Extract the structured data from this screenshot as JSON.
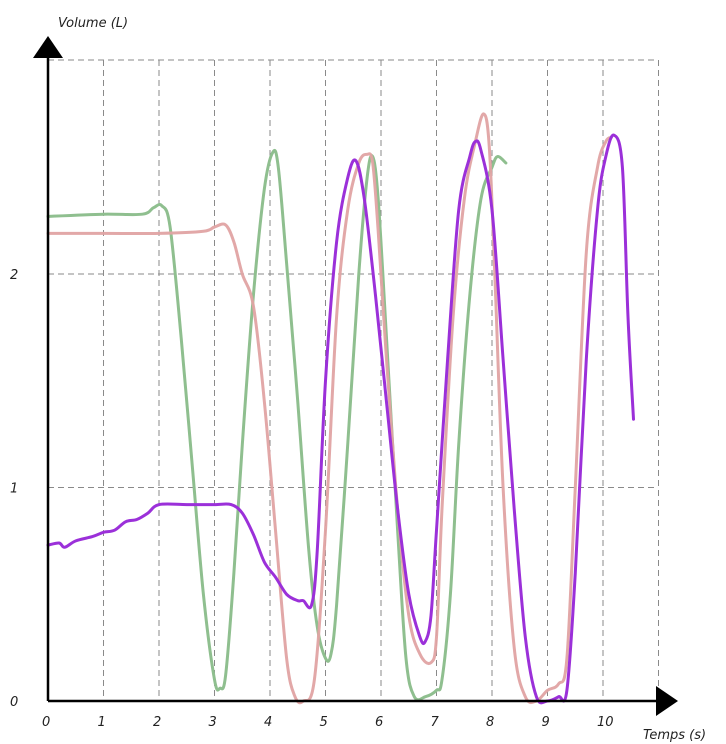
{
  "chart_data": {
    "type": "line",
    "title": "",
    "xlabel": "Temps (s)",
    "ylabel": "Volume (L)",
    "xlim": [
      0,
      11
    ],
    "ylim": [
      0,
      3
    ],
    "xticks": [
      "0",
      "1",
      "2",
      "3",
      "4",
      "5",
      "6",
      "7",
      "8",
      "9",
      "10"
    ],
    "yticks": [
      "0",
      "1",
      "2"
    ],
    "grid": true,
    "series": [
      {
        "color": "#8fbf8f",
        "x": [
          0,
          1.0,
          1.7,
          1.9,
          2.05,
          2.2,
          2.4,
          2.6,
          2.8,
          3.0,
          3.1,
          3.2,
          3.35,
          3.5,
          3.7,
          3.9,
          4.05,
          4.15,
          4.3,
          4.5,
          4.7,
          4.85,
          5.0,
          5.1,
          5.2,
          5.4,
          5.6,
          5.75,
          5.85,
          5.95,
          6.1,
          6.3,
          6.45,
          6.6,
          6.8,
          7.0,
          7.1,
          7.25,
          7.4,
          7.6,
          7.8,
          8.0,
          8.1,
          8.25
        ],
        "y": [
          2.27,
          2.28,
          2.28,
          2.31,
          2.32,
          2.22,
          1.7,
          1.1,
          0.5,
          0.1,
          0.06,
          0.12,
          0.6,
          1.2,
          1.9,
          2.4,
          2.57,
          2.5,
          2.05,
          1.4,
          0.7,
          0.35,
          0.2,
          0.22,
          0.45,
          1.2,
          2.0,
          2.45,
          2.55,
          2.35,
          1.7,
          0.8,
          0.2,
          0.02,
          0.02,
          0.05,
          0.1,
          0.5,
          1.2,
          1.9,
          2.35,
          2.5,
          2.55,
          2.52
        ]
      },
      {
        "color": "#e0a3a3",
        "x": [
          0,
          1.0,
          2.0,
          2.8,
          3.0,
          3.2,
          3.35,
          3.5,
          3.7,
          3.9,
          4.1,
          4.3,
          4.45,
          4.6,
          4.8,
          5.0,
          5.2,
          5.4,
          5.6,
          5.75,
          5.85,
          5.95,
          6.1,
          6.3,
          6.5,
          6.7,
          6.9,
          7.0,
          7.1,
          7.3,
          7.5,
          7.7,
          7.85,
          7.95,
          8.05,
          8.2,
          8.4,
          8.6,
          8.8,
          9.0,
          9.2,
          9.35,
          9.5,
          9.7,
          9.9,
          10.05,
          10.15
        ],
        "y": [
          2.19,
          2.19,
          2.19,
          2.2,
          2.22,
          2.23,
          2.15,
          2.0,
          1.85,
          1.4,
          0.8,
          0.2,
          0.02,
          0.0,
          0.1,
          0.8,
          1.8,
          2.3,
          2.52,
          2.56,
          2.52,
          2.2,
          1.6,
          0.9,
          0.4,
          0.22,
          0.18,
          0.3,
          0.9,
          1.8,
          2.35,
          2.62,
          2.75,
          2.6,
          2.0,
          1.0,
          0.25,
          0.02,
          0.0,
          0.05,
          0.08,
          0.2,
          1.0,
          2.1,
          2.5,
          2.62,
          2.64
        ]
      },
      {
        "color": "#9b30d9",
        "x": [
          0,
          0.2,
          0.3,
          0.5,
          0.8,
          1.0,
          1.2,
          1.4,
          1.6,
          1.8,
          2.0,
          2.5,
          3.0,
          3.3,
          3.5,
          3.7,
          3.9,
          4.1,
          4.3,
          4.5,
          4.6,
          4.75,
          4.85,
          5.0,
          5.2,
          5.4,
          5.55,
          5.7,
          5.9,
          6.1,
          6.3,
          6.5,
          6.7,
          6.8,
          6.9,
          7.0,
          7.2,
          7.4,
          7.6,
          7.7,
          7.8,
          8.0,
          8.2,
          8.4,
          8.6,
          8.8,
          9.0,
          9.2,
          9.35,
          9.5,
          9.7,
          9.9,
          10.05,
          10.2,
          10.35,
          10.45,
          10.55
        ],
        "y": [
          0.73,
          0.74,
          0.72,
          0.75,
          0.77,
          0.79,
          0.8,
          0.84,
          0.85,
          0.88,
          0.92,
          0.92,
          0.92,
          0.92,
          0.88,
          0.78,
          0.65,
          0.58,
          0.5,
          0.47,
          0.47,
          0.45,
          0.7,
          1.5,
          2.15,
          2.45,
          2.53,
          2.35,
          1.9,
          1.4,
          0.9,
          0.5,
          0.3,
          0.28,
          0.4,
          0.8,
          1.6,
          2.3,
          2.55,
          2.62,
          2.58,
          2.3,
          1.6,
          0.9,
          0.3,
          0.02,
          0.0,
          0.02,
          0.05,
          0.6,
          1.6,
          2.3,
          2.55,
          2.65,
          2.5,
          1.8,
          1.32
        ]
      }
    ]
  }
}
